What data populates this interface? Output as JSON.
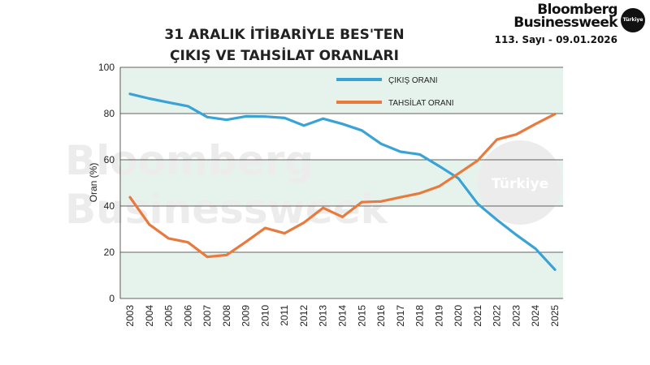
{
  "header": {
    "title_line1": "31 ARALIK İTİBARİYLE BES'TEN",
    "title_line2": "ÇIKIŞ VE TAHSİLAT ORANLARI"
  },
  "brand": {
    "line1": "Bloomberg",
    "line2": "Businessweek",
    "badge": "Türkiye",
    "issue": "113. Sayı - 09.01.2026"
  },
  "watermark": {
    "line1": "Bloomberg",
    "line2": "Businessweek",
    "badge": "Türkiye"
  },
  "colors": {
    "cikis": "#3aa3d6",
    "tahsilat": "#e87a3e",
    "band": "#e5f3ec",
    "grid": "#333333"
  },
  "chart_data": {
    "type": "line",
    "title": "31 ARALIK İTİBARİYLE BES'TEN ÇIKIŞ VE TAHSİLAT ORANLARI",
    "xlabel": "",
    "ylabel": "Oran (%)",
    "ylim": [
      0,
      100
    ],
    "yticks": [
      0,
      20,
      40,
      60,
      80,
      100
    ],
    "grid": true,
    "legend": "top-center",
    "x": [
      "2003",
      "2004",
      "2005",
      "2006",
      "2007",
      "2008",
      "2009",
      "2010",
      "2011",
      "2012",
      "2013",
      "2014",
      "2015",
      "2016",
      "2017",
      "2018",
      "2019",
      "2020",
      "2021",
      "2022",
      "2023",
      "2024",
      "2025"
    ],
    "series": [
      {
        "name": "ÇIKIŞ ORANI",
        "color": "#3aa3d6",
        "values": [
          88.5,
          86.5,
          84.8,
          83.2,
          78.5,
          77.3,
          78.8,
          78.7,
          78.1,
          74.8,
          77.8,
          75.5,
          72.7,
          66.9,
          63.5,
          62.3,
          57.3,
          52.0,
          41.0,
          34.0,
          27.5,
          21.5,
          12.5
        ]
      },
      {
        "name": "TAHSİLAT ORANI",
        "color": "#e87a3e",
        "values": [
          43.8,
          32.0,
          26.0,
          24.3,
          18.0,
          18.8,
          24.5,
          30.5,
          28.2,
          32.8,
          39.2,
          35.3,
          41.7,
          42.0,
          43.8,
          45.5,
          48.5,
          54.0,
          59.7,
          68.8,
          71.0,
          75.5,
          79.8
        ]
      }
    ]
  }
}
